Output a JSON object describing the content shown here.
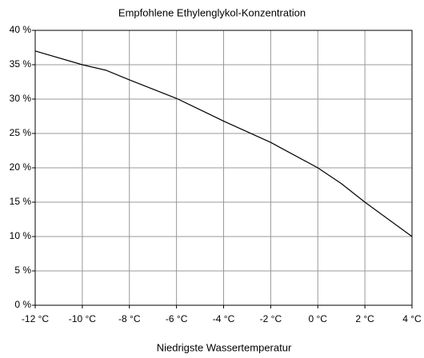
{
  "chart_data": {
    "type": "line",
    "title": "Empfohlene Ethylenglykol-Konzentration",
    "x_label": "Niedrigste Wassertemperatur",
    "x": [
      -12,
      -10,
      -9,
      -8,
      -6,
      -4,
      -2,
      0,
      1,
      2,
      4
    ],
    "series": [
      {
        "name": "Ethylenglykol",
        "color": "#000000",
        "values": [
          37,
          35,
          34.2,
          32.8,
          30.1,
          26.8,
          23.7,
          20,
          17.7,
          15,
          10
        ]
      }
    ],
    "xlim": [
      -12,
      4
    ],
    "xticks": [
      {
        "value": -12,
        "label": "-12 °C"
      },
      {
        "value": -10,
        "label": "-10 °C"
      },
      {
        "value": -8,
        "label": "-8 °C"
      },
      {
        "value": -6,
        "label": "-6 °C"
      },
      {
        "value": -4,
        "label": "-4 °C"
      },
      {
        "value": -2,
        "label": "-2 °C"
      },
      {
        "value": 0,
        "label": "0 °C"
      },
      {
        "value": 2,
        "label": "2 °C"
      },
      {
        "value": 4,
        "label": "4 °C"
      }
    ],
    "ylim": [
      0,
      40
    ],
    "yticks": [
      {
        "value": 0,
        "label": "0 %"
      },
      {
        "value": 5,
        "label": "5 %"
      },
      {
        "value": 10,
        "label": "10 %"
      },
      {
        "value": 15,
        "label": "15 %"
      },
      {
        "value": 20,
        "label": "20 %"
      },
      {
        "value": 25,
        "label": "25 %"
      },
      {
        "value": 30,
        "label": "30 %"
      },
      {
        "value": 35,
        "label": "35 %"
      },
      {
        "value": 40,
        "label": "40 %"
      }
    ],
    "grid": true
  }
}
